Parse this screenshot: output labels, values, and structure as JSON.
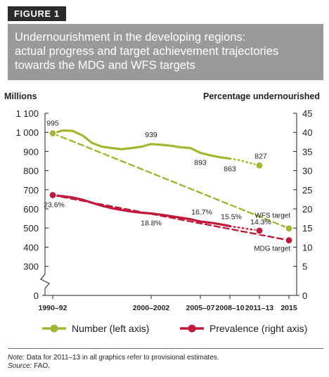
{
  "figure_label": "FIGURE 1",
  "title": "Undernourishment in the developing regions:\nactual progress and target achievement trajectories\ntowards the MDG and WFS targets",
  "note": {
    "note_label": "Note:",
    "note_text": "Data for 2011–13 in all graphics refer to provisional estimates.",
    "source_label": "Source:",
    "source_text": "FAO."
  },
  "colors": {
    "number_series": "#a6b531",
    "prevalence_series": "#c2183a",
    "axis": "#231f20",
    "title_band": "#9a9a9c"
  },
  "chart_data": {
    "type": "line",
    "left_axis_title": "Millions",
    "right_axis_title": "Percentage undernourished",
    "left_ticks": [
      "1 100",
      "1 000",
      "900",
      "800",
      "700",
      "600",
      "500",
      "400",
      "300",
      "0"
    ],
    "left_tick_values": [
      1100,
      1000,
      900,
      800,
      700,
      600,
      500,
      400,
      300,
      0
    ],
    "left_axis_break": true,
    "right_ticks": [
      "45",
      "40",
      "35",
      "30",
      "25",
      "20",
      "15",
      "10",
      "5",
      "0"
    ],
    "right_tick_values": [
      45,
      40,
      35,
      30,
      25,
      20,
      15,
      10,
      5,
      0
    ],
    "x_tick_labels": [
      "1990–92",
      "2000–2002",
      "2005–07",
      "2008–10",
      "2011–13",
      "2015"
    ],
    "x_tick_years": [
      1991,
      2001,
      2006,
      2009,
      2012,
      2015
    ],
    "xlim": [
      1991,
      2015
    ],
    "series": [
      {
        "name": "Number (left axis)",
        "axis": "left",
        "style": "solid",
        "x": [
          1991,
          1992,
          1993,
          1994,
          1995,
          1996,
          1997,
          1998,
          1999,
          2000,
          2001,
          2002,
          2003,
          2004,
          2005,
          2006,
          2007,
          2008,
          2009
        ],
        "y": [
          995,
          1010,
          1008,
          985,
          945,
          925,
          918,
          912,
          918,
          925,
          939,
          935,
          930,
          922,
          918,
          893,
          880,
          870,
          863
        ]
      },
      {
        "name": "Number provisional",
        "axis": "left",
        "style": "dotted",
        "x": [
          2009,
          2010,
          2011,
          2012
        ],
        "y": [
          863,
          855,
          840,
          827
        ]
      },
      {
        "name": "WFS target",
        "axis": "left",
        "style": "dashed",
        "x": [
          1991,
          2015
        ],
        "y": [
          995,
          498
        ]
      },
      {
        "name": "Prevalence (right axis)",
        "axis": "right",
        "style": "solid",
        "x": [
          1991,
          1992,
          1993,
          1994,
          1995,
          1996,
          1997,
          1998,
          1999,
          2000,
          2001,
          2002,
          2003,
          2004,
          2005,
          2006,
          2007,
          2008,
          2009
        ],
        "y": [
          23.6,
          23.3,
          23.0,
          22.4,
          21.6,
          20.8,
          20.2,
          19.7,
          19.3,
          19.0,
          18.8,
          18.5,
          18.1,
          17.7,
          17.3,
          16.7,
          16.4,
          16.0,
          15.5
        ]
      },
      {
        "name": "Prevalence provisional",
        "axis": "right",
        "style": "dotted",
        "x": [
          2009,
          2010,
          2011,
          2012
        ],
        "y": [
          15.5,
          15.1,
          14.7,
          14.3
        ]
      },
      {
        "name": "MDG target",
        "axis": "right",
        "style": "dashed",
        "x": [
          1991,
          2015
        ],
        "y": [
          23.6,
          11.8
        ]
      }
    ],
    "markers": [
      {
        "series": "number",
        "x": 1991,
        "y": 995
      },
      {
        "series": "number",
        "x": 2012,
        "y": 827
      },
      {
        "series": "number",
        "x": 2015,
        "y": 498
      },
      {
        "series": "prevalence",
        "x": 1991,
        "y": 23.6
      },
      {
        "series": "prevalence",
        "x": 2012,
        "y": 14.3
      },
      {
        "series": "prevalence",
        "x": 2015,
        "y": 11.8
      }
    ],
    "data_labels": [
      {
        "series": "number",
        "text": "995",
        "x": 1991,
        "y": 995
      },
      {
        "series": "number",
        "text": "939",
        "x": 2001,
        "y": 939
      },
      {
        "series": "number",
        "text": "893",
        "x": 2006,
        "y": 893
      },
      {
        "series": "number",
        "text": "863",
        "x": 2009,
        "y": 863
      },
      {
        "series": "number",
        "text": "827",
        "x": 2012,
        "y": 827
      },
      {
        "series": "prevalence",
        "text": "23.6%",
        "x": 1991,
        "y": 23.6
      },
      {
        "series": "prevalence",
        "text": "18.8%",
        "x": 2001,
        "y": 18.8
      },
      {
        "series": "prevalence",
        "text": "16.7%",
        "x": 2006,
        "y": 16.7
      },
      {
        "series": "prevalence",
        "text": "15.5%",
        "x": 2009,
        "y": 15.5
      },
      {
        "series": "prevalence",
        "text": "14.3%",
        "x": 2012,
        "y": 14.3
      }
    ],
    "target_labels": [
      {
        "text": "WFS target",
        "x": 2015,
        "y": 498,
        "axis": "left"
      },
      {
        "text": "MDG target",
        "x": 2015,
        "y": 11.8,
        "axis": "right"
      }
    ],
    "legend": {
      "position": "bottom",
      "entries": [
        "Number (left axis)",
        "Prevalence (right axis)"
      ]
    }
  }
}
